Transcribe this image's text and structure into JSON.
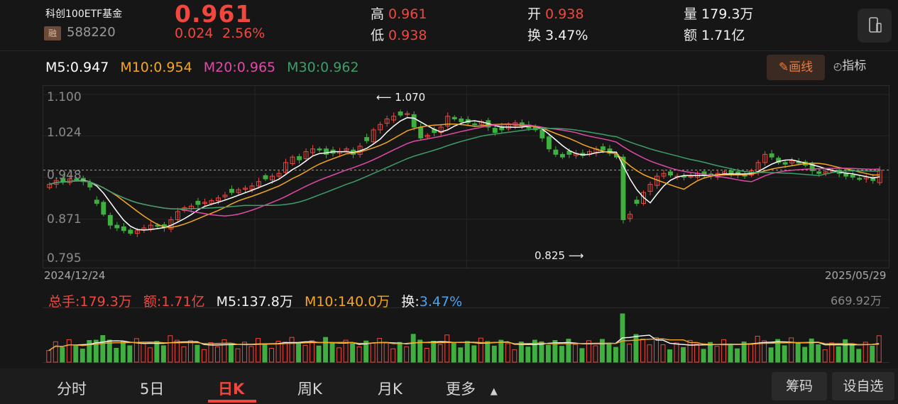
{
  "header": {
    "fund_name": "科创100ETF基金",
    "badge": "融",
    "code": "588220",
    "price": "0.961",
    "change": "0.024",
    "change_pct": "2.56%",
    "high_label": "高",
    "high": "0.961",
    "low_label": "低",
    "low": "0.938",
    "open_label": "开",
    "open": "0.938",
    "turnover_label": "换",
    "turnover": "3.47%",
    "volume_label": "量",
    "volume": "179.3万",
    "amount_label": "额",
    "amount": "1.71亿"
  },
  "ma_bar": {
    "m5": "M5:0.947",
    "m10": "M10:0.954",
    "m20": "M20:0.965",
    "m30": "M30:0.962"
  },
  "toolbar": {
    "draw_label": "画线",
    "indicator_label": "指标"
  },
  "chart": {
    "y_ticks": [
      "1.100",
      "1.024",
      "0.948",
      "0.871",
      "0.795"
    ],
    "date_start": "2024/12/24",
    "date_end": "2025/05/29",
    "max_annotation": "1.070",
    "min_annotation": "0.825"
  },
  "volume_bar": {
    "total": "总手:179.3万",
    "amount": "额:1.71亿",
    "m5": "M5:137.8万",
    "m10": "M10:140.0万",
    "turnover_label": "换:",
    "turnover_value": "3.47%",
    "max": "669.92万"
  },
  "nav": {
    "tabs": [
      "分时",
      "5日",
      "日K",
      "周K",
      "月K",
      "更多"
    ],
    "active": "日K",
    "chips_label": "筹码",
    "settings_label": "设自选"
  },
  "colors": {
    "up": "#f1473f",
    "down": "#3fb040",
    "m5": "#ffffff",
    "m10": "#f5a623",
    "m20": "#e04aa8",
    "m30": "#3d9e6a",
    "accent": "#f47a3a",
    "blue": "#4aa3f0"
  },
  "chart_data": {
    "type": "candlestick",
    "period": "daily",
    "x_range": [
      "2024/12/24",
      "2025/05/29"
    ],
    "ylim": [
      0.795,
      1.1
    ],
    "highest": 1.07,
    "lowest": 0.825,
    "last_close": 0.961,
    "closes": [
      0.935,
      0.942,
      0.94,
      0.945,
      0.944,
      0.94,
      0.93,
      0.9,
      0.88,
      0.86,
      0.855,
      0.85,
      0.845,
      0.85,
      0.855,
      0.86,
      0.858,
      0.855,
      0.87,
      0.885,
      0.892,
      0.895,
      0.898,
      0.902,
      0.905,
      0.91,
      0.915,
      0.92,
      0.925,
      0.928,
      0.932,
      0.94,
      0.945,
      0.95,
      0.955,
      0.975,
      0.985,
      0.98,
      0.995,
      1.0,
      0.998,
      0.99,
      0.992,
      0.995,
      1.0,
      0.99,
      1.005,
      1.015,
      1.035,
      1.045,
      1.055,
      1.06,
      1.062,
      1.065,
      1.04,
      1.02,
      1.025,
      1.03,
      1.04,
      1.06,
      1.055,
      1.05,
      1.048,
      1.045,
      1.05,
      1.04,
      1.03,
      1.035,
      1.045,
      1.048,
      1.042,
      1.038,
      1.035,
      1.02,
      1.0,
      0.99,
      0.985,
      0.99,
      0.992,
      0.988,
      0.995,
      1.0,
      0.998,
      0.992,
      0.985,
      0.87,
      0.88,
      0.9,
      0.92,
      0.935,
      0.95,
      0.955,
      0.952,
      0.95,
      0.948,
      0.95,
      0.955,
      0.952,
      0.95,
      0.955,
      0.958,
      0.955,
      0.952,
      0.95,
      0.96,
      0.975,
      0.99,
      0.985,
      0.975,
      0.972,
      0.978,
      0.975,
      0.97,
      0.96,
      0.955,
      0.958,
      0.96,
      0.955,
      0.95,
      0.948,
      0.945,
      0.948,
      0.942,
      0.961
    ],
    "series": [
      {
        "name": "M5",
        "value_last": 0.947
      },
      {
        "name": "M10",
        "value_last": 0.954
      },
      {
        "name": "M20",
        "value_last": 0.965
      },
      {
        "name": "M30",
        "value_last": 0.962
      }
    ]
  }
}
